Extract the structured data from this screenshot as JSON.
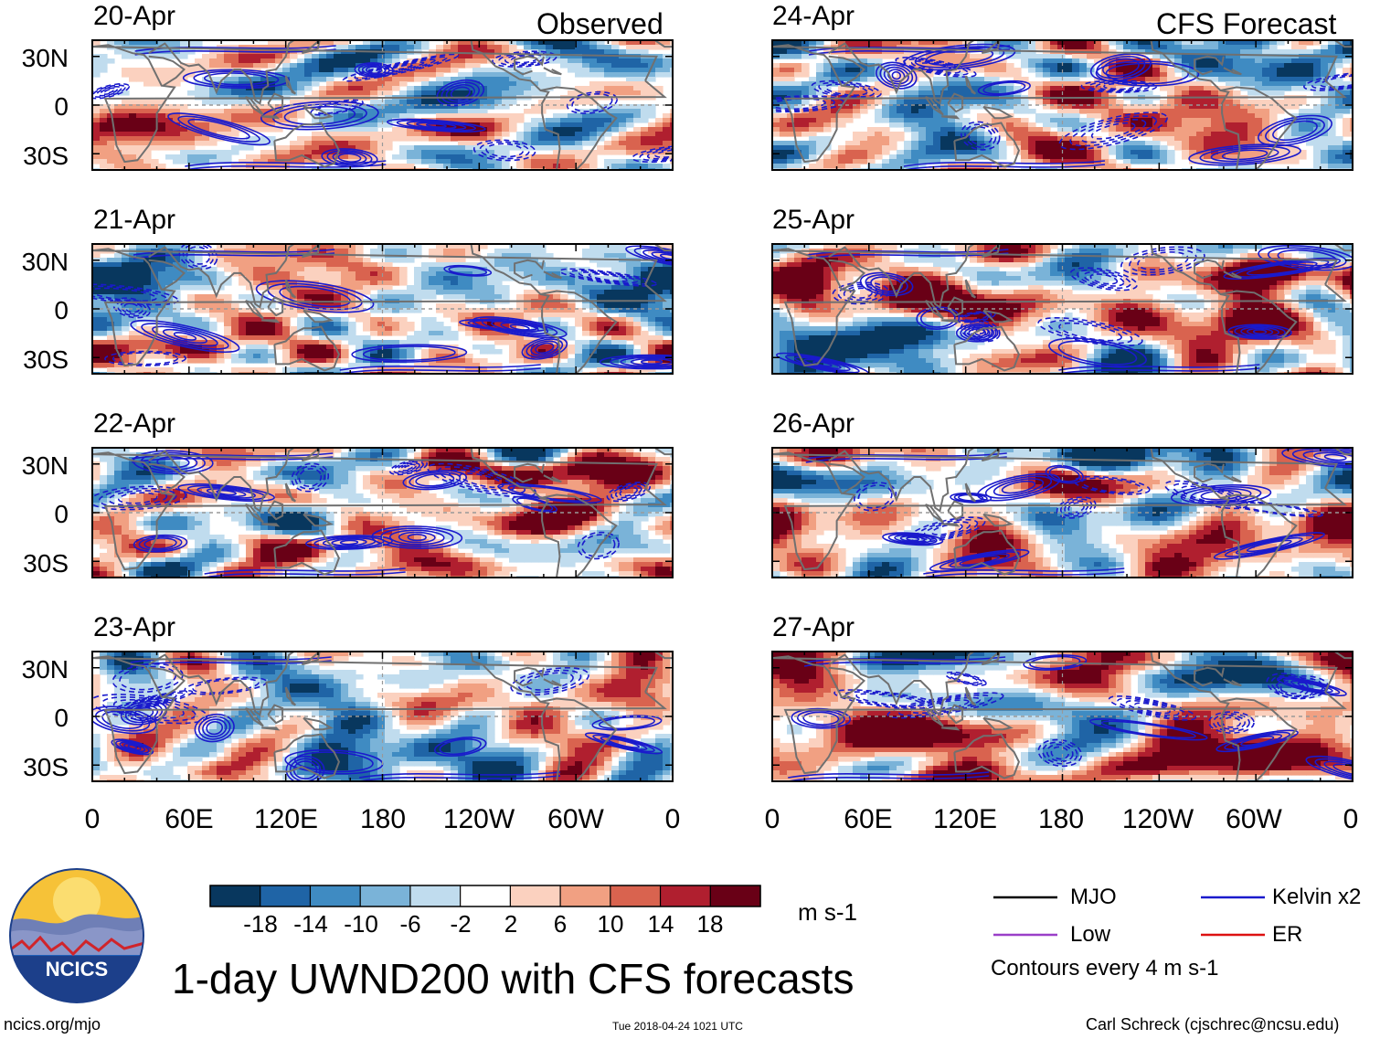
{
  "headers": {
    "left": "Observed",
    "right": "CFS Forecast"
  },
  "colors": {
    "land_outline": "#707070",
    "kelvin_contour": "#1a1acc",
    "er_contour": "#dd1111",
    "mjo_contour": "#000000",
    "low_contour": "#9a3fc8",
    "equator_dash": "#999999"
  },
  "chart_data": {
    "type": "heatmap",
    "variable": "200-hPa zonal wind anomaly (UWND200)",
    "y_tick_labels": [
      "30N",
      "0",
      "30S"
    ],
    "x_tick_labels": [
      "0",
      "60E",
      "120E",
      "180",
      "120W",
      "60W",
      "0"
    ],
    "lon_range": [
      0,
      360
    ],
    "lat_range": [
      -40,
      40
    ],
    "panels": [
      {
        "date": "20-Apr",
        "column": "Observed"
      },
      {
        "date": "21-Apr",
        "column": "Observed"
      },
      {
        "date": "22-Apr",
        "column": "Observed"
      },
      {
        "date": "23-Apr",
        "column": "Observed"
      },
      {
        "date": "24-Apr",
        "column": "CFS Forecast"
      },
      {
        "date": "25-Apr",
        "column": "CFS Forecast"
      },
      {
        "date": "26-Apr",
        "column": "CFS Forecast"
      },
      {
        "date": "27-Apr",
        "column": "CFS Forecast"
      }
    ],
    "colorbar": {
      "levels": [
        "-18",
        "-14",
        "-10",
        "-6",
        "-2",
        "2",
        "6",
        "10",
        "14",
        "18"
      ],
      "colors": [
        "#08375e",
        "#1f64a6",
        "#3f8bc2",
        "#7ab3d8",
        "#c0dcee",
        "#ffffff",
        "#fbd1bf",
        "#f1a082",
        "#d9634f",
        "#b01f2f",
        "#690016"
      ],
      "units": "m s-1"
    },
    "legend": [
      {
        "label": "MJO",
        "color": "#000000"
      },
      {
        "label": "Kelvin x2",
        "color": "#1a1acc"
      },
      {
        "label": "Low",
        "color": "#9a3fc8"
      },
      {
        "label": "ER",
        "color": "#dd1111"
      }
    ],
    "contour_note": "Contours every 4 m s-1",
    "title": "1-day UWND200 with CFS forecasts"
  },
  "footer": {
    "url": "ncics.org/mjo",
    "timestamp": "Tue 2018-04-24 1021 UTC",
    "credit": "Carl Schreck (cjschrec@ncsu.edu)"
  },
  "logo": {
    "text": "NCICS"
  }
}
